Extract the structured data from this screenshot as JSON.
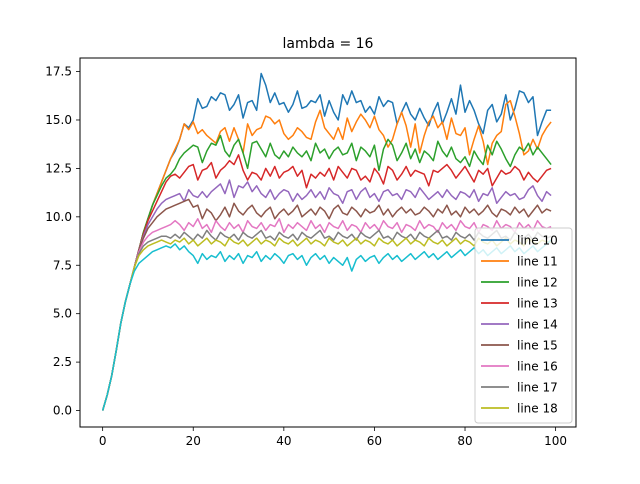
{
  "chart_data": {
    "type": "line",
    "title": "lambda = 16",
    "xlabel": "",
    "ylabel": "",
    "xlim": [
      -5,
      104.5
    ],
    "ylim": [
      -0.85,
      18.2
    ],
    "xticks": [
      0,
      20,
      40,
      60,
      80,
      100
    ],
    "xtick_labels": [
      "0",
      "20",
      "40",
      "60",
      "80",
      "100"
    ],
    "yticks": [
      0,
      2.5,
      5,
      7.5,
      10,
      12.5,
      15,
      17.5
    ],
    "ytick_labels": [
      "0.0",
      "2.5",
      "5.0",
      "7.5",
      "10.0",
      "12.5",
      "15.0",
      "17.5"
    ],
    "grid": false,
    "legend_position": "lower-right",
    "x_points": 100,
    "series": [
      {
        "name": "line 10",
        "color": "#1f77b4",
        "values": [
          0,
          0.8,
          1.8,
          3.1,
          4.5,
          5.6,
          6.5,
          7.4,
          8.3,
          9.2,
          9.9,
          10.6,
          11.2,
          11.8,
          12.4,
          13.0,
          13.4,
          14.0,
          14.8,
          14.6,
          15.0,
          16.1,
          15.6,
          15.7,
          16.2,
          16.0,
          16.4,
          16.3,
          15.5,
          15.8,
          16.3,
          15.1,
          15.9,
          16.0,
          15.5,
          17.4,
          16.8,
          15.9,
          16.4,
          15.8,
          15.9,
          15.4,
          15.8,
          16.5,
          15.6,
          15.7,
          16.0,
          15.9,
          16.3,
          15.2,
          16.0,
          15.4,
          15.0,
          16.3,
          15.8,
          16.5,
          15.9,
          16.0,
          15.4,
          15.7,
          15.3,
          16.2,
          15.7,
          16.0,
          15.9,
          14.8,
          15.4,
          15.9,
          15.3,
          15.0,
          15.6,
          15.1,
          14.7,
          15.4,
          15.9,
          14.8,
          15.4,
          16.1,
          15.3,
          16.8,
          15.4,
          16.0,
          15.5,
          14.8,
          14.3,
          15.5,
          15.8,
          14.9,
          15.3,
          16.3,
          15.0,
          15.6,
          16.5,
          16.4,
          15.9,
          16.2,
          14.2,
          14.9,
          15.5,
          15.5
        ]
      },
      {
        "name": "line 11",
        "color": "#ff7f0e",
        "values": [
          0,
          0.8,
          1.8,
          3.1,
          4.5,
          5.6,
          6.5,
          7.4,
          8.3,
          9.2,
          9.9,
          10.6,
          11.2,
          11.8,
          12.4,
          13.0,
          13.5,
          14.0,
          14.8,
          14.5,
          14.9,
          14.3,
          14.5,
          14.2,
          14.0,
          13.8,
          14.4,
          14.6,
          13.9,
          14.6,
          14.0,
          13.3,
          14.8,
          14.2,
          14.5,
          14.6,
          15.2,
          15.1,
          14.8,
          15.0,
          14.3,
          14.0,
          14.2,
          14.6,
          14.4,
          14.1,
          14.0,
          14.9,
          15.5,
          14.6,
          14.3,
          14.0,
          14.6,
          14.0,
          15.1,
          14.4,
          14.9,
          15.3,
          15.0,
          14.6,
          15.2,
          14.5,
          14.2,
          13.6,
          14.0,
          14.8,
          15.4,
          14.7,
          13.6,
          14.8,
          13.3,
          14.2,
          14.9,
          15.2,
          14.6,
          14.9,
          14.0,
          15.1,
          14.3,
          14.2,
          14.6,
          13.2,
          14.0,
          14.7,
          13.9,
          12.7,
          13.8,
          14.2,
          14.4,
          15.8,
          16.0,
          15.2,
          14.3,
          13.2,
          13.4,
          14.0,
          13.5,
          14.2,
          14.6,
          14.9
        ]
      },
      {
        "name": "line 12",
        "color": "#2ca02c",
        "values": [
          0,
          0.8,
          1.8,
          3.1,
          4.5,
          5.6,
          6.5,
          7.4,
          8.3,
          9.2,
          9.9,
          10.6,
          11.1,
          11.6,
          12.0,
          12.2,
          12.5,
          13.0,
          13.3,
          13.5,
          13.7,
          13.6,
          12.8,
          13.4,
          13.8,
          13.7,
          14.2,
          13.4,
          13.1,
          13.7,
          14.0,
          13.3,
          12.5,
          13.8,
          13.9,
          13.5,
          13.1,
          13.8,
          13.2,
          13.0,
          13.4,
          13.1,
          13.6,
          13.3,
          13.1,
          13.4,
          12.9,
          13.8,
          13.3,
          13.5,
          13.0,
          13.4,
          13.6,
          13.2,
          13.3,
          13.8,
          12.9,
          13.6,
          13.4,
          13.1,
          13.7,
          12.4,
          13.5,
          14.0,
          13.7,
          12.9,
          13.3,
          13.8,
          13.0,
          13.5,
          12.8,
          13.4,
          13.2,
          12.9,
          13.9,
          13.4,
          13.1,
          13.6,
          13.0,
          12.8,
          13.1,
          12.6,
          13.4,
          13.0,
          12.7,
          13.7,
          13.2,
          13.9,
          13.5,
          13.0,
          12.6,
          13.2,
          13.6,
          13.4,
          13.8,
          13.2,
          13.6,
          13.3,
          13.0,
          12.7
        ]
      },
      {
        "name": "line 13",
        "color": "#d62728",
        "values": [
          0,
          0.8,
          1.8,
          3.1,
          4.5,
          5.6,
          6.5,
          7.4,
          8.3,
          9.1,
          9.8,
          10.3,
          10.8,
          11.3,
          11.8,
          12.1,
          12.2,
          12.0,
          12.3,
          12.6,
          12.7,
          11.9,
          12.4,
          12.5,
          12.8,
          12.0,
          12.4,
          12.6,
          12.9,
          12.7,
          13.2,
          12.4,
          11.9,
          12.3,
          12.2,
          11.9,
          12.5,
          12.1,
          12.6,
          12.0,
          12.3,
          12.4,
          12.6,
          12.1,
          12.4,
          11.5,
          12.2,
          12.0,
          12.3,
          12.1,
          12.5,
          11.9,
          12.6,
          12.3,
          12.0,
          12.5,
          12.4,
          11.9,
          12.1,
          11.8,
          12.5,
          12.2,
          11.7,
          12.6,
          12.4,
          11.9,
          12.2,
          12.6,
          12.1,
          12.4,
          12.3,
          12.2,
          11.6,
          12.4,
          12.3,
          12.5,
          12.7,
          12.4,
          12.0,
          12.3,
          12.6,
          12.2,
          11.8,
          12.4,
          12.2,
          12.5,
          11.6,
          12.0,
          12.4,
          12.2,
          12.3,
          12.6,
          12.4,
          11.9,
          12.3,
          12.0,
          11.8,
          12.1,
          12.4,
          12.5
        ]
      },
      {
        "name": "line 14",
        "color": "#9467bd",
        "values": [
          0,
          0.8,
          1.8,
          3.1,
          4.5,
          5.6,
          6.5,
          7.4,
          8.3,
          9.0,
          9.6,
          10.0,
          10.4,
          10.7,
          10.9,
          11.0,
          11.1,
          11.2,
          10.8,
          11.4,
          11.1,
          11.0,
          11.3,
          11.0,
          11.3,
          11.5,
          11.7,
          11.2,
          11.9,
          11.0,
          11.6,
          11.5,
          11.8,
          11.3,
          11.6,
          11.2,
          11.0,
          11.4,
          10.9,
          11.2,
          11.4,
          11.3,
          10.8,
          11.2,
          10.9,
          11.1,
          11.4,
          11.0,
          11.3,
          10.9,
          11.5,
          11.2,
          11.1,
          10.7,
          11.3,
          11.4,
          10.9,
          11.3,
          11.5,
          11.0,
          11.2,
          10.8,
          11.3,
          11.4,
          11.1,
          11.2,
          10.9,
          11.4,
          11.3,
          11.0,
          11.5,
          11.2,
          10.9,
          11.1,
          11.3,
          11.0,
          11.4,
          11.1,
          10.9,
          11.3,
          11.2,
          11.0,
          11.4,
          10.8,
          11.2,
          11.1,
          11.5,
          10.7,
          11.0,
          11.3,
          11.1,
          11.2,
          10.9,
          11.0,
          11.4,
          11.6,
          11.1,
          10.8,
          11.3,
          11.1
        ]
      },
      {
        "name": "line 15",
        "color": "#8c564b",
        "values": [
          0,
          0.8,
          1.8,
          3.1,
          4.5,
          5.6,
          6.5,
          7.4,
          8.3,
          8.9,
          9.4,
          9.7,
          10.0,
          10.2,
          10.4,
          10.5,
          10.6,
          10.7,
          10.8,
          10.9,
          10.5,
          10.6,
          9.9,
          10.4,
          10.2,
          9.8,
          10.1,
          10.5,
          10.0,
          10.7,
          10.3,
          10.1,
          10.4,
          10.6,
          10.2,
          10.0,
          10.3,
          10.5,
          9.9,
          10.2,
          10.4,
          10.1,
          10.3,
          10.6,
          10.0,
          10.2,
          10.4,
          10.1,
          10.5,
          10.3,
          9.9,
          10.4,
          10.6,
          10.2,
          10.1,
          10.5,
          10.3,
          10.0,
          10.4,
          10.2,
          10.3,
          10.6,
          10.1,
          10.4,
          10.0,
          10.3,
          10.5,
          10.2,
          10.4,
          10.1,
          10.2,
          10.5,
          10.3,
          10.0,
          10.4,
          10.2,
          10.6,
          10.1,
          10.3,
          10.0,
          10.5,
          10.2,
          10.4,
          10.1,
          10.3,
          10.6,
          10.2,
          10.0,
          10.4,
          10.3,
          10.1,
          10.5,
          10.2,
          10.4,
          10.0,
          10.3,
          10.6,
          10.2,
          10.4,
          10.3
        ]
      },
      {
        "name": "line 16",
        "color": "#e377c2",
        "values": [
          0,
          0.8,
          1.8,
          3.1,
          4.5,
          5.6,
          6.5,
          7.4,
          8.2,
          8.7,
          9.0,
          9.2,
          9.3,
          9.4,
          9.5,
          9.6,
          9.8,
          9.6,
          9.3,
          9.7,
          9.5,
          9.9,
          9.4,
          9.6,
          9.2,
          9.8,
          9.5,
          9.3,
          9.7,
          9.4,
          9.6,
          9.2,
          9.8,
          9.5,
          9.4,
          9.7,
          9.3,
          9.6,
          9.5,
          9.9,
          9.2,
          9.6,
          9.4,
          9.7,
          9.5,
          9.3,
          9.8,
          9.4,
          9.6,
          9.2,
          9.7,
          9.5,
          9.4,
          9.8,
          9.3,
          9.6,
          9.5,
          9.2,
          9.7,
          9.4,
          9.6,
          9.3,
          9.8,
          9.5,
          9.4,
          9.7,
          9.2,
          9.6,
          9.5,
          9.3,
          9.8,
          9.4,
          9.6,
          9.5,
          9.2,
          9.7,
          9.4,
          9.6,
          9.3,
          9.8,
          9.5,
          9.4,
          9.7,
          9.2,
          9.6,
          9.5,
          9.3,
          9.8,
          9.4,
          9.6,
          9.5,
          9.2,
          9.7,
          9.4,
          9.6,
          9.3,
          9.8,
          9.5,
          9.4,
          9.5
        ]
      },
      {
        "name": "line 17",
        "color": "#7f7f7f",
        "values": [
          0,
          0.8,
          1.8,
          3.1,
          4.5,
          5.6,
          6.5,
          7.4,
          8.1,
          8.5,
          8.7,
          8.8,
          8.9,
          9.0,
          9.0,
          8.9,
          9.1,
          8.9,
          9.2,
          9.0,
          8.8,
          9.1,
          8.9,
          9.3,
          9.0,
          8.8,
          9.2,
          9.0,
          8.9,
          9.1,
          8.8,
          9.2,
          9.0,
          8.9,
          9.1,
          9.3,
          8.9,
          9.0,
          8.8,
          9.2,
          9.0,
          8.9,
          9.1,
          8.8,
          9.2,
          9.0,
          8.9,
          9.1,
          9.3,
          8.9,
          9.0,
          8.8,
          9.2,
          9.0,
          8.9,
          9.1,
          8.8,
          9.2,
          9.0,
          8.9,
          9.1,
          9.3,
          8.9,
          9.0,
          8.8,
          9.2,
          9.0,
          8.9,
          9.1,
          8.8,
          9.2,
          9.0,
          8.9,
          9.1,
          9.3,
          8.9,
          9.0,
          8.8,
          9.2,
          9.0,
          8.9,
          9.1,
          8.8,
          9.2,
          9.0,
          8.9,
          9.1,
          9.3,
          8.9,
          9.0,
          8.8,
          9.2,
          9.0,
          8.9,
          9.1,
          8.8,
          9.2,
          9.0,
          8.9,
          9.0
        ]
      },
      {
        "name": "line 18",
        "color": "#bcbd22",
        "values": [
          0,
          0.8,
          1.8,
          3.1,
          4.5,
          5.6,
          6.5,
          7.4,
          8.0,
          8.3,
          8.5,
          8.6,
          8.7,
          8.8,
          8.7,
          8.6,
          8.8,
          8.7,
          8.9,
          8.6,
          8.8,
          8.5,
          8.7,
          8.9,
          8.6,
          8.8,
          8.7,
          8.5,
          8.9,
          8.7,
          8.6,
          8.8,
          8.5,
          8.7,
          8.9,
          8.6,
          8.8,
          8.7,
          8.5,
          8.9,
          8.7,
          8.6,
          8.8,
          8.5,
          8.7,
          8.9,
          8.6,
          8.8,
          8.7,
          8.5,
          8.9,
          8.7,
          8.6,
          8.8,
          8.5,
          8.7,
          8.9,
          8.6,
          8.8,
          8.7,
          8.5,
          8.9,
          8.7,
          8.6,
          8.8,
          8.5,
          8.7,
          8.9,
          8.6,
          8.8,
          8.7,
          8.5,
          8.9,
          8.7,
          8.6,
          8.8,
          8.5,
          8.7,
          8.9,
          8.6,
          8.8,
          8.7,
          8.5,
          8.9,
          8.7,
          8.6,
          8.8,
          8.5,
          8.7,
          8.9,
          8.6,
          8.8,
          8.7,
          8.5,
          8.9,
          8.7,
          8.6,
          8.8,
          8.7,
          8.7
        ]
      },
      {
        "name": "",
        "color": "#17becf",
        "values": [
          0,
          0.8,
          1.8,
          3.1,
          4.5,
          5.6,
          6.5,
          7.2,
          7.6,
          7.8,
          8.0,
          8.2,
          8.3,
          8.4,
          8.5,
          8.4,
          8.6,
          8.3,
          8.5,
          8.2,
          8.0,
          7.6,
          8.1,
          7.8,
          8.0,
          7.9,
          8.2,
          7.7,
          8.0,
          7.8,
          8.1,
          7.6,
          8.0,
          7.9,
          8.2,
          7.7,
          8.0,
          7.8,
          8.1,
          7.9,
          7.6,
          8.0,
          8.1,
          7.8,
          8.0,
          7.5,
          7.9,
          8.1,
          7.8,
          8.0,
          7.6,
          7.9,
          7.7,
          7.5,
          7.9,
          7.2,
          7.8,
          8.0,
          7.7,
          7.9,
          8.0,
          7.6,
          7.9,
          8.1,
          7.8,
          8.0,
          7.7,
          7.9,
          8.1,
          7.8,
          8.0,
          8.2,
          7.9,
          8.1,
          7.8,
          8.0,
          8.2,
          7.9,
          8.1,
          8.3,
          8.0,
          8.2,
          8.4,
          8.1,
          8.3,
          8.0,
          8.2,
          8.4,
          8.1,
          8.3,
          8.5,
          8.2,
          8.4,
          8.1,
          8.3,
          8.5,
          8.2,
          8.4,
          8.6,
          8.8
        ]
      }
    ]
  }
}
